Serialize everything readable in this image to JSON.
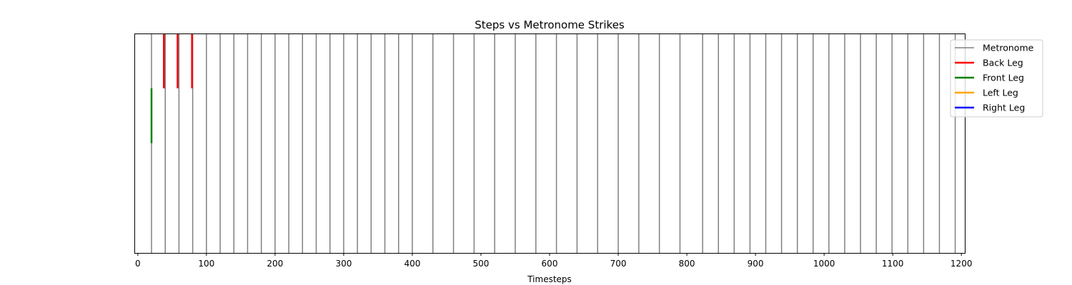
{
  "chart_data": {
    "type": "line",
    "title": "Steps vs Metronome Strikes",
    "xlabel": "Timesteps",
    "ylabel": "",
    "xlim": [
      -5,
      1205
    ],
    "ylim": [
      0,
      1
    ],
    "x_ticks": [
      0,
      100,
      200,
      300,
      400,
      500,
      600,
      700,
      800,
      900,
      1000,
      1100,
      1200
    ],
    "x_tick_labels": [
      "0",
      "100",
      "200",
      "300",
      "400",
      "500",
      "600",
      "700",
      "800",
      "900",
      "1000",
      "1100",
      "1200"
    ],
    "grid": false,
    "legend_position": "top-right, outside plot",
    "series": [
      {
        "name": "Metronome",
        "color": "#808080",
        "band": [
          0,
          1
        ],
        "x": [
          20,
          40,
          60,
          80,
          100,
          120,
          140,
          160,
          180,
          200,
          220,
          240,
          260,
          280,
          300,
          320,
          340,
          360,
          380,
          400,
          430,
          460,
          490,
          520,
          550,
          580,
          610,
          640,
          670,
          700,
          730,
          760,
          790,
          823,
          846,
          869,
          892,
          915,
          938,
          961,
          984,
          1007,
          1030,
          1053,
          1076,
          1099,
          1122,
          1145,
          1168,
          1191
        ]
      },
      {
        "name": "Back Leg",
        "color": "#ff0000",
        "band": [
          0.75,
          1
        ],
        "x": [
          38,
          58,
          79
        ]
      },
      {
        "name": "Front Leg",
        "color": "#008000",
        "band": [
          0.5,
          0.75
        ],
        "x": [
          20
        ]
      },
      {
        "name": "Left Leg",
        "color": "#ffa500",
        "band": [
          0.25,
          0.5
        ],
        "x": []
      },
      {
        "name": "Right Leg",
        "color": "#0000ff",
        "band": [
          0,
          0.25
        ],
        "x": []
      }
    ]
  }
}
